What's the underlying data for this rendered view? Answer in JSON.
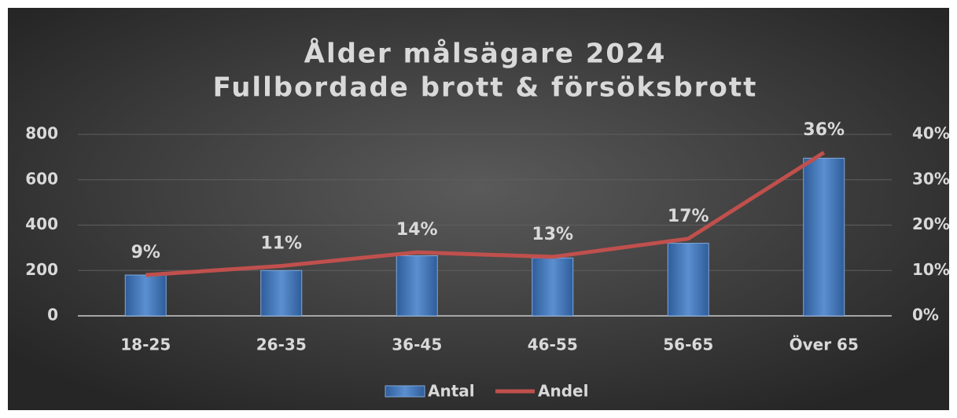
{
  "chart_data": {
    "type": "bar+line",
    "title": "Ålder målsägare 2024",
    "subtitle": "Fullbordade brott & försöksbrott",
    "categories": [
      "18-25",
      "26-35",
      "36-45",
      "46-55",
      "56-65",
      "Över 65"
    ],
    "series": [
      {
        "name": "Antal",
        "type": "bar",
        "color": "#4f81bd",
        "values": [
          180,
          200,
          265,
          255,
          320,
          695
        ]
      },
      {
        "name": "Andel",
        "type": "line",
        "axis": "y2",
        "color": "#c0504d",
        "values": [
          9,
          11,
          14,
          13,
          17,
          36
        ],
        "value_labels": [
          "9%",
          "11%",
          "14%",
          "13%",
          "17%",
          "36%"
        ]
      }
    ],
    "ylim": [
      0,
      800
    ],
    "yticks": [
      0,
      200,
      400,
      600,
      800
    ],
    "y2lim": [
      0,
      40
    ],
    "y2ticks": [
      {
        "value": 0,
        "label": "0%"
      },
      {
        "value": 10,
        "label": "10%"
      },
      {
        "value": 20,
        "label": "20%"
      },
      {
        "value": 30,
        "label": "30%"
      },
      {
        "value": 40,
        "label": "40%"
      }
    ],
    "grid": true,
    "legend": "bottom"
  }
}
